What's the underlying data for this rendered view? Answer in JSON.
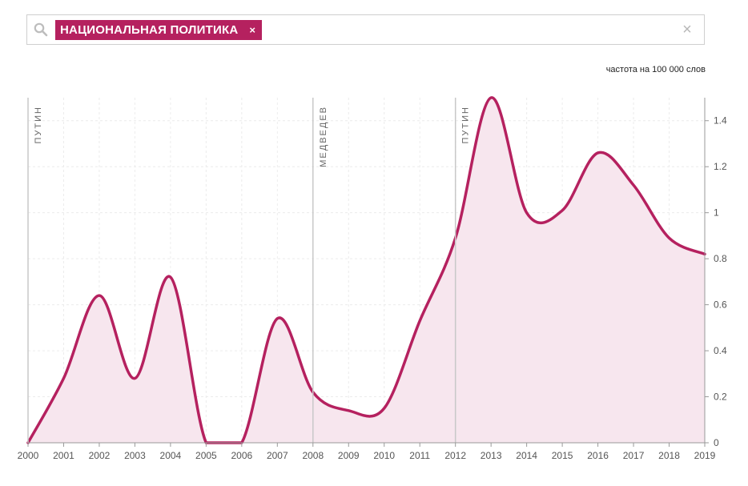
{
  "search": {
    "tag_label": "НАЦИОНАЛЬНАЯ ПОЛИТИКА",
    "tag_remove": "×",
    "clear": "×"
  },
  "chart_data": {
    "type": "area",
    "ylabel": "частота на 100 000 слов",
    "xlim": [
      2000,
      2019
    ],
    "ylim": [
      0,
      1.5
    ],
    "x_ticks": [
      "2000",
      "2001",
      "2002",
      "2003",
      "2004",
      "2005",
      "2006",
      "2007",
      "2008",
      "2009",
      "2010",
      "2011",
      "2012",
      "2013",
      "2014",
      "2015",
      "2016",
      "2017",
      "2018",
      "2019"
    ],
    "y_ticks": [
      "0",
      "0.2",
      "0.4",
      "0.6",
      "0.8",
      "1",
      "1.2",
      "1.4"
    ],
    "y_tick_values": [
      0,
      0.2,
      0.4,
      0.6,
      0.8,
      1,
      1.2,
      1.4
    ],
    "grid": true,
    "series": [
      {
        "x": [
          2000,
          2001,
          2002,
          2003,
          2004,
          2005,
          2006,
          2007,
          2008,
          2009,
          2010,
          2011,
          2012,
          2013,
          2014,
          2015,
          2016,
          2017,
          2018,
          2019
        ],
        "values": [
          0,
          0.28,
          0.64,
          0.28,
          0.72,
          0,
          0,
          0.54,
          0.22,
          0.14,
          0.15,
          0.53,
          0.89,
          1.5,
          1.0,
          1.01,
          1.26,
          1.12,
          0.89,
          0.82
        ],
        "color": "#b5215f",
        "fill": "#f7e6ee"
      }
    ],
    "periods": [
      {
        "label": "ПУТИН",
        "x": 2000
      },
      {
        "label": "МЕДВЕДЕВ",
        "x": 2008
      },
      {
        "label": "ПУТИН",
        "x": 2012
      }
    ]
  }
}
